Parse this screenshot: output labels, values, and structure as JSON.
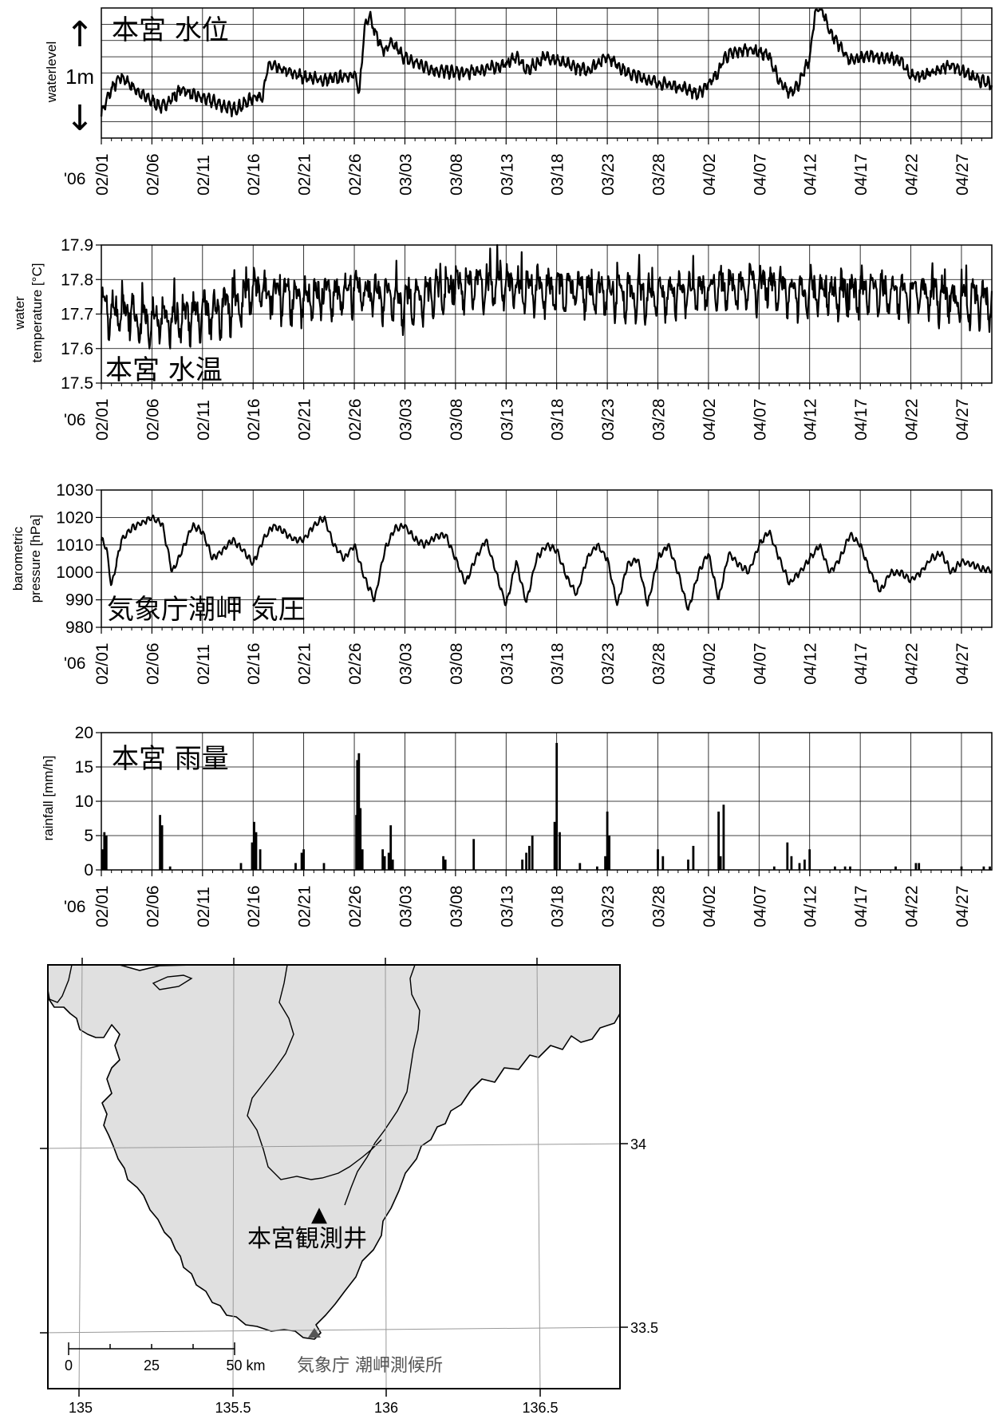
{
  "date_labels": [
    "02/01",
    "02/06",
    "02/11",
    "02/16",
    "02/21",
    "02/26",
    "03/03",
    "03/08",
    "03/13",
    "03/18",
    "03/23",
    "03/28",
    "04/02",
    "04/07",
    "04/12",
    "04/17",
    "04/22",
    "04/27"
  ],
  "year_label": "'06",
  "panels": {
    "waterlevel": {
      "title": "本宮  水位",
      "ylabel": "waterlevel",
      "scale_label": "1m",
      "arrow_up_glyph": "↑",
      "arrow_down_glyph": "↓"
    },
    "temperature": {
      "title": "本宮  水温",
      "ylabel_line1": "water",
      "ylabel_line2": "temperature [°C]"
    },
    "pressure": {
      "title": "気象庁潮岬  気圧",
      "ylabel_line1": "barometric",
      "ylabel_line2": "pressure [hPa]"
    },
    "rainfall": {
      "title": "本宮  雨量",
      "ylabel": "rainfall [mm/h]"
    }
  },
  "chart_data": [
    {
      "type": "line",
      "x_unit": "date (2006-02-01 to 2006-04-30)",
      "ylabel": "waterlevel",
      "yticks": [],
      "keypoints_day": [
        0,
        1,
        2,
        4,
        6,
        8,
        9,
        11,
        13,
        14,
        15,
        16,
        16.5,
        18,
        20,
        22,
        24,
        25,
        25.5,
        26,
        26.5,
        27,
        28,
        28.5,
        29,
        30,
        33,
        36,
        40,
        41,
        42,
        44,
        46,
        48,
        50,
        52,
        55,
        58,
        59,
        60,
        61,
        61.5,
        62,
        64,
        66,
        67,
        68,
        69,
        70,
        70.5,
        71,
        72,
        74,
        76,
        78,
        79,
        80,
        82,
        84,
        86,
        88
      ],
      "keypoints_level": [
        0.15,
        0.35,
        0.45,
        0.3,
        0.2,
        0.35,
        0.3,
        0.25,
        0.18,
        0.22,
        0.28,
        0.3,
        0.55,
        0.5,
        0.45,
        0.42,
        0.45,
        0.48,
        0.3,
        0.85,
        0.97,
        0.82,
        0.65,
        0.72,
        0.7,
        0.6,
        0.5,
        0.48,
        0.55,
        0.62,
        0.5,
        0.62,
        0.55,
        0.5,
        0.62,
        0.48,
        0.4,
        0.35,
        0.3,
        0.4,
        0.48,
        0.6,
        0.63,
        0.68,
        0.62,
        0.4,
        0.32,
        0.4,
        0.6,
        0.95,
        1.05,
        0.82,
        0.58,
        0.62,
        0.6,
        0.58,
        0.45,
        0.48,
        0.55,
        0.45,
        0.38
      ]
    },
    {
      "type": "line",
      "x_unit": "date (2006-02-01 to 2006-04-30)",
      "ylabel": "water temperature [°C]",
      "ylim": [
        17.5,
        17.9
      ],
      "yticks": [
        "17.5",
        "17.6",
        "17.7",
        "17.8",
        "17.9"
      ],
      "baseline_days": [
        0,
        5,
        10,
        13,
        15,
        20,
        25,
        30,
        35,
        40,
        45,
        50,
        55,
        60,
        65,
        70,
        75,
        80,
        85,
        88
      ],
      "baseline_values": [
        17.71,
        17.68,
        17.7,
        17.72,
        17.77,
        17.74,
        17.77,
        17.73,
        17.78,
        17.78,
        17.77,
        17.76,
        17.75,
        17.77,
        17.78,
        17.76,
        17.76,
        17.76,
        17.74,
        17.73
      ]
    },
    {
      "type": "line",
      "x_unit": "date (2006-02-01 to 2006-04-30)",
      "ylabel": "barometric pressure [hPa]",
      "ylim": [
        980,
        1030
      ],
      "yticks": [
        "980",
        "990",
        "1000",
        "1010",
        "1020",
        "1030"
      ],
      "keypoints_day": [
        0,
        0.5,
        1,
        2,
        3,
        4,
        5,
        6,
        7,
        8,
        9,
        10,
        11,
        12,
        13,
        14,
        15,
        16,
        17,
        18,
        19,
        20,
        21,
        22,
        23,
        24,
        25,
        26,
        27,
        28,
        29,
        30,
        31,
        32,
        33,
        34,
        35,
        36,
        37,
        38,
        39,
        40,
        41,
        42,
        43,
        44,
        45,
        46,
        47,
        48,
        49,
        50,
        51,
        52,
        53,
        54,
        55,
        56,
        57,
        58,
        59,
        60,
        61,
        62,
        63,
        64,
        65,
        66,
        67,
        68,
        69,
        70,
        71,
        72,
        73,
        74,
        75,
        76,
        77,
        78,
        79,
        80,
        81,
        82,
        83,
        84,
        85,
        86,
        87,
        88
      ],
      "keypoints_value": [
        1012,
        1009,
        995,
        1012,
        1016,
        1018,
        1020,
        1018,
        1000,
        1008,
        1017,
        1015,
        1005,
        1008,
        1012,
        1008,
        1003,
        1012,
        1017,
        1015,
        1012,
        1012,
        1017,
        1020,
        1010,
        1005,
        1010,
        998,
        990,
        1008,
        1016,
        1017,
        1012,
        1010,
        1013,
        1014,
        1005,
        996,
        1005,
        1012,
        1000,
        988,
        1004,
        989,
        1005,
        1010,
        1008,
        998,
        992,
        1005,
        1010,
        1005,
        988,
        1003,
        1005,
        988,
        1005,
        1010,
        1000,
        986,
        1000,
        1007,
        990,
        1007,
        1003,
        1000,
        1010,
        1015,
        1005,
        996,
        1000,
        1005,
        1010,
        1000,
        1005,
        1014,
        1010,
        1000,
        993,
        1000,
        1000,
        997,
        1000,
        1005,
        1007,
        1000,
        1004,
        1003,
        1001,
        1001
      ]
    },
    {
      "type": "bar",
      "x_unit": "date (2006-02-01 to 2006-04-30)",
      "ylabel": "rainfall [mm/h]",
      "ylim": [
        0,
        20
      ],
      "yticks": [
        "0",
        "5",
        "10",
        "15",
        "20"
      ],
      "events": [
        {
          "day": 0.1,
          "mm": 3
        },
        {
          "day": 0.3,
          "mm": 5.5
        },
        {
          "day": 0.5,
          "mm": 5
        },
        {
          "day": 5.8,
          "mm": 8
        },
        {
          "day": 6.0,
          "mm": 6.5
        },
        {
          "day": 6.8,
          "mm": 0.5
        },
        {
          "day": 13.8,
          "mm": 1
        },
        {
          "day": 14.9,
          "mm": 4
        },
        {
          "day": 15.1,
          "mm": 7
        },
        {
          "day": 15.3,
          "mm": 5.5
        },
        {
          "day": 15.7,
          "mm": 3
        },
        {
          "day": 19.2,
          "mm": 1
        },
        {
          "day": 19.8,
          "mm": 2.5
        },
        {
          "day": 20.0,
          "mm": 3
        },
        {
          "day": 22.0,
          "mm": 1
        },
        {
          "day": 25.2,
          "mm": 8
        },
        {
          "day": 25.3,
          "mm": 16
        },
        {
          "day": 25.45,
          "mm": 17
        },
        {
          "day": 25.6,
          "mm": 9
        },
        {
          "day": 25.8,
          "mm": 3
        },
        {
          "day": 27.8,
          "mm": 3
        },
        {
          "day": 28.0,
          "mm": 2
        },
        {
          "day": 28.4,
          "mm": 2.5
        },
        {
          "day": 28.6,
          "mm": 6.5
        },
        {
          "day": 28.8,
          "mm": 1.5
        },
        {
          "day": 33.8,
          "mm": 2
        },
        {
          "day": 34.0,
          "mm": 1.5
        },
        {
          "day": 36.8,
          "mm": 4.5
        },
        {
          "day": 41.6,
          "mm": 1.5
        },
        {
          "day": 42.0,
          "mm": 2.5
        },
        {
          "day": 42.3,
          "mm": 3.5
        },
        {
          "day": 42.6,
          "mm": 5
        },
        {
          "day": 44.8,
          "mm": 7
        },
        {
          "day": 45.0,
          "mm": 18.5
        },
        {
          "day": 45.3,
          "mm": 5.5
        },
        {
          "day": 47.3,
          "mm": 1
        },
        {
          "day": 49.0,
          "mm": 0.5
        },
        {
          "day": 49.8,
          "mm": 2
        },
        {
          "day": 50.0,
          "mm": 8.5
        },
        {
          "day": 50.2,
          "mm": 5
        },
        {
          "day": 55.0,
          "mm": 3
        },
        {
          "day": 55.5,
          "mm": 2
        },
        {
          "day": 58.0,
          "mm": 1.5
        },
        {
          "day": 58.5,
          "mm": 3.5
        },
        {
          "day": 61.0,
          "mm": 8.5
        },
        {
          "day": 61.5,
          "mm": 9.5
        },
        {
          "day": 61.2,
          "mm": 2
        },
        {
          "day": 66.5,
          "mm": 0.5
        },
        {
          "day": 67.8,
          "mm": 4
        },
        {
          "day": 68.2,
          "mm": 2
        },
        {
          "day": 69.0,
          "mm": 1
        },
        {
          "day": 69.5,
          "mm": 1.5
        },
        {
          "day": 70.0,
          "mm": 3
        },
        {
          "day": 72.5,
          "mm": 0.5
        },
        {
          "day": 73.5,
          "mm": 0.5
        },
        {
          "day": 74.0,
          "mm": 0.5
        },
        {
          "day": 78.5,
          "mm": 0.5
        },
        {
          "day": 80.5,
          "mm": 1
        },
        {
          "day": 80.8,
          "mm": 1
        },
        {
          "day": 85.0,
          "mm": 0.5
        },
        {
          "day": 87.2,
          "mm": 0.5
        },
        {
          "day": 87.8,
          "mm": 0.5
        }
      ]
    }
  ],
  "map": {
    "lon_labels": [
      "135",
      "135.5",
      "136",
      "136.5"
    ],
    "lat_labels": [
      "34",
      "33.5"
    ],
    "scalebar_labels": [
      "0",
      "25",
      "50 km"
    ],
    "station_label": "本宮観測井",
    "station_marker": "▲",
    "jma_label": "気象庁  潮岬測候所",
    "land_color": "#e0e0e0",
    "grid_color": "#999999"
  }
}
